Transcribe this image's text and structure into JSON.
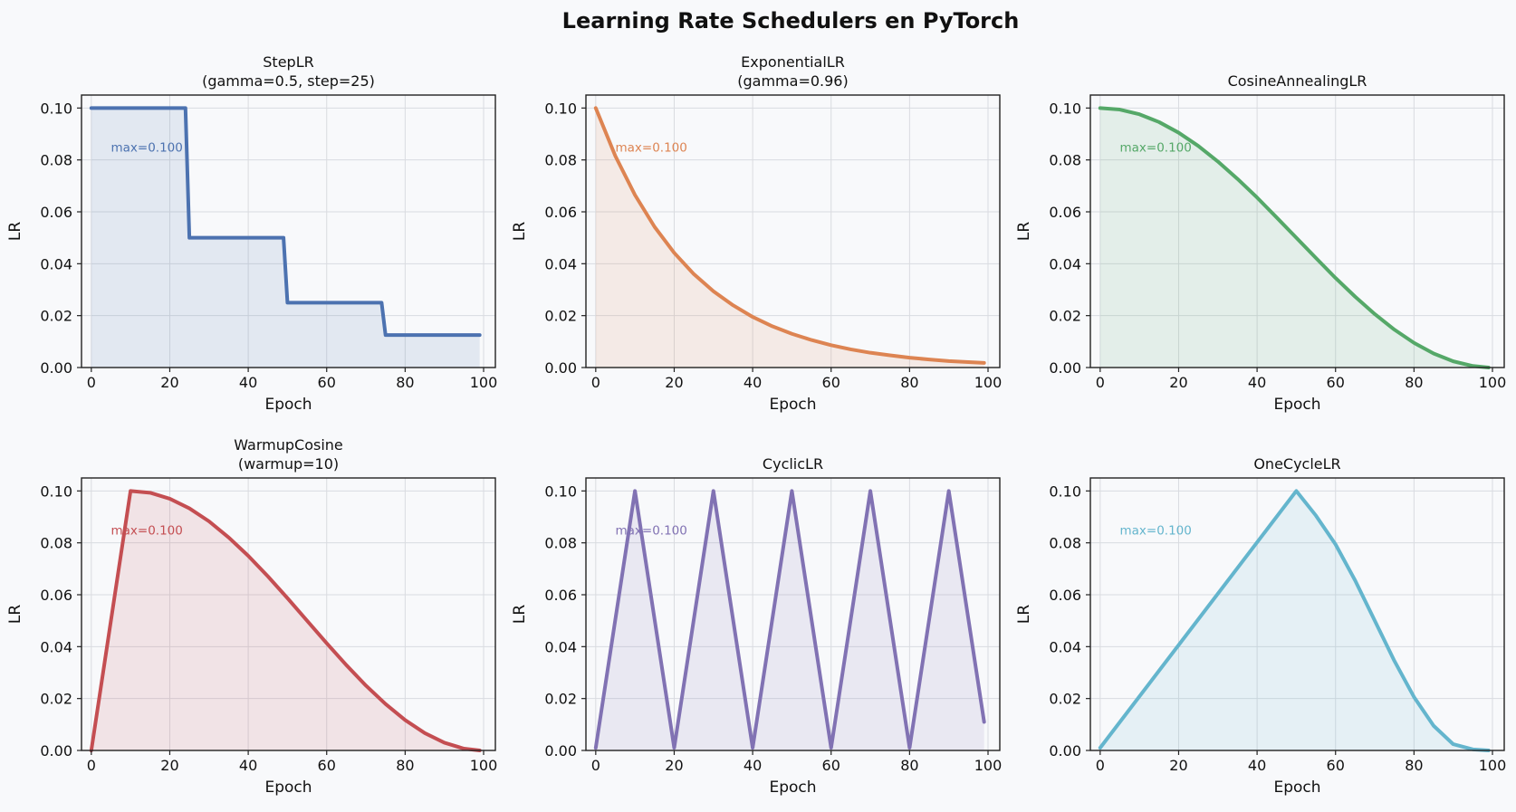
{
  "figure": {
    "title": "Learning Rate Schedulers en PyTorch",
    "background": "#f8f9fb"
  },
  "chart_data": [
    {
      "type": "line",
      "key": "steplr",
      "title": [
        "StepLR",
        "(gamma=0.5, step=25)"
      ],
      "xlabel": "Epoch",
      "ylabel": "LR",
      "xlim": [
        -2.5,
        103
      ],
      "ylim": [
        0,
        0.105
      ],
      "xticks": [
        0,
        20,
        40,
        60,
        80,
        100
      ],
      "yticks": [
        0.0,
        0.02,
        0.04,
        0.06,
        0.08,
        0.1
      ],
      "grid": true,
      "fill": true,
      "color": "#4c72b0",
      "annotation": "max=0.100",
      "series": [
        {
          "x": [
            0,
            24,
            25,
            49,
            50,
            74,
            75,
            99
          ],
          "y": [
            0.1,
            0.1,
            0.05,
            0.05,
            0.025,
            0.025,
            0.0125,
            0.0125
          ]
        }
      ]
    },
    {
      "type": "line",
      "key": "exponentiallr",
      "title": [
        "ExponentialLR",
        "(gamma=0.96)"
      ],
      "xlabel": "Epoch",
      "ylabel": "LR",
      "xlim": [
        -2.5,
        103
      ],
      "ylim": [
        0,
        0.105
      ],
      "xticks": [
        0,
        20,
        40,
        60,
        80,
        100
      ],
      "yticks": [
        0.0,
        0.02,
        0.04,
        0.06,
        0.08,
        0.1
      ],
      "grid": true,
      "fill": true,
      "color": "#dd8452",
      "annotation": "max=0.100",
      "series": [
        {
          "x": [
            0,
            5,
            10,
            15,
            20,
            25,
            30,
            35,
            40,
            45,
            50,
            55,
            60,
            65,
            70,
            75,
            80,
            85,
            90,
            95,
            99
          ],
          "y": [
            0.1,
            0.0815,
            0.0665,
            0.0542,
            0.0442,
            0.036,
            0.0294,
            0.024,
            0.0195,
            0.0159,
            0.013,
            0.0106,
            0.0086,
            0.007,
            0.0057,
            0.0047,
            0.0038,
            0.0031,
            0.0025,
            0.0021,
            0.0018
          ]
        }
      ]
    },
    {
      "type": "line",
      "key": "cosineannealinglr",
      "title": [
        "CosineAnnealingLR"
      ],
      "xlabel": "Epoch",
      "ylabel": "LR",
      "xlim": [
        -2.5,
        103
      ],
      "ylim": [
        0,
        0.105
      ],
      "xticks": [
        0,
        20,
        40,
        60,
        80,
        100
      ],
      "yticks": [
        0.0,
        0.02,
        0.04,
        0.06,
        0.08,
        0.1
      ],
      "grid": true,
      "fill": true,
      "color": "#55a868",
      "annotation": "max=0.100",
      "series": [
        {
          "x": [
            0,
            5,
            10,
            15,
            20,
            25,
            30,
            35,
            40,
            45,
            50,
            55,
            60,
            65,
            70,
            75,
            80,
            85,
            90,
            95,
            99
          ],
          "y": [
            0.1,
            0.0994,
            0.0976,
            0.0946,
            0.0905,
            0.0854,
            0.0794,
            0.0727,
            0.0655,
            0.0578,
            0.05,
            0.0422,
            0.0345,
            0.0273,
            0.0206,
            0.0146,
            0.0095,
            0.0054,
            0.0024,
            0.0006,
            0.0
          ]
        }
      ]
    },
    {
      "type": "line",
      "key": "warmupcosine",
      "title": [
        "WarmupCosine",
        "(warmup=10)"
      ],
      "xlabel": "Epoch",
      "ylabel": "LR",
      "xlim": [
        -2.5,
        103
      ],
      "ylim": [
        0,
        0.105
      ],
      "xticks": [
        0,
        20,
        40,
        60,
        80,
        100
      ],
      "yticks": [
        0.0,
        0.02,
        0.04,
        0.06,
        0.08,
        0.1
      ],
      "grid": true,
      "fill": true,
      "color": "#c44e52",
      "annotation": "max=0.100",
      "series": [
        {
          "x": [
            0,
            10,
            15,
            20,
            25,
            30,
            35,
            40,
            45,
            50,
            55,
            60,
            65,
            70,
            75,
            80,
            85,
            90,
            95,
            99
          ],
          "y": [
            0.0,
            0.1,
            0.0993,
            0.097,
            0.0933,
            0.0883,
            0.0821,
            0.075,
            0.0671,
            0.0587,
            0.05,
            0.0413,
            0.0329,
            0.025,
            0.0179,
            0.0117,
            0.0067,
            0.003,
            0.0007,
            0.0
          ]
        }
      ]
    },
    {
      "type": "line",
      "key": "cycliclr",
      "title": [
        "CyclicLR"
      ],
      "xlabel": "Epoch",
      "ylabel": "LR",
      "xlim": [
        -2.5,
        103
      ],
      "ylim": [
        0,
        0.105
      ],
      "xticks": [
        0,
        20,
        40,
        60,
        80,
        100
      ],
      "yticks": [
        0.0,
        0.02,
        0.04,
        0.06,
        0.08,
        0.1
      ],
      "grid": true,
      "fill": true,
      "color": "#8172b3",
      "annotation": "max=0.100",
      "series": [
        {
          "x": [
            0,
            10,
            20,
            30,
            40,
            50,
            60,
            70,
            80,
            90,
            99
          ],
          "y": [
            0.001,
            0.1,
            0.001,
            0.1,
            0.001,
            0.1,
            0.001,
            0.1,
            0.001,
            0.1,
            0.011
          ]
        }
      ]
    },
    {
      "type": "line",
      "key": "onecyclelr",
      "title": [
        "OneCycleLR"
      ],
      "xlabel": "Epoch",
      "ylabel": "LR",
      "xlim": [
        -2.5,
        103
      ],
      "ylim": [
        0,
        0.105
      ],
      "xticks": [
        0,
        20,
        40,
        60,
        80,
        100
      ],
      "yticks": [
        0.0,
        0.02,
        0.04,
        0.06,
        0.08,
        0.1
      ],
      "grid": true,
      "fill": true,
      "color": "#64b5cd",
      "annotation": "max=0.100",
      "series": [
        {
          "x": [
            0,
            50,
            55,
            60,
            65,
            70,
            75,
            80,
            85,
            90,
            95,
            99
          ],
          "y": [
            0.001,
            0.1,
            0.0905,
            0.0794,
            0.0655,
            0.05,
            0.0345,
            0.0206,
            0.0095,
            0.0024,
            0.0004,
            0.0
          ]
        }
      ]
    }
  ]
}
